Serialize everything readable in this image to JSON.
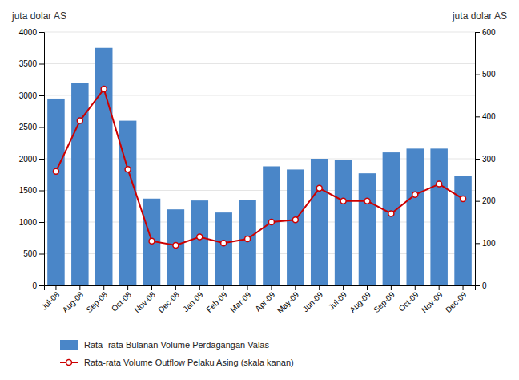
{
  "chart_data": {
    "type": "bar",
    "ylabel": "juta dolar AS",
    "y2label": "juta dolar AS",
    "categories": [
      "Jul-08",
      "Aug-08",
      "Sep-08",
      "Oct-08",
      "Nov-08",
      "Dec-08",
      "Jan-09",
      "Feb-09",
      "Mar-09",
      "Apr-09",
      "May-09",
      "Jun-09",
      "Jul-09",
      "Aug-09",
      "Sep-09",
      "Oct-09",
      "Nov-09",
      "Dec-09"
    ],
    "series": [
      {
        "name": "Rata -rata Bulanan Volume Perdagangan Valas",
        "type": "bar",
        "color": "#4a86c8",
        "values": [
          2950,
          3200,
          3750,
          2600,
          1370,
          1200,
          1340,
          1150,
          1350,
          1880,
          1830,
          2000,
          1980,
          1770,
          2100,
          2160,
          2160,
          1730
        ]
      },
      {
        "name": "Rata-rata Volume Outflow Pelaku Asing (skala kanan)",
        "type": "line",
        "color": "#cc0000",
        "marker": "circle",
        "axis": "y2",
        "values": [
          270,
          390,
          465,
          275,
          105,
          95,
          115,
          100,
          110,
          150,
          155,
          230,
          200,
          200,
          170,
          215,
          240,
          205
        ]
      }
    ],
    "ylim": [
      0,
      4000
    ],
    "yticks": [
      0,
      500,
      1000,
      1500,
      2000,
      2500,
      3000,
      3500,
      4000
    ],
    "y2lim": [
      0,
      600
    ],
    "y2ticks": [
      0,
      100,
      200,
      300,
      400,
      500,
      600
    ],
    "grid": true,
    "legend": "bottom"
  }
}
